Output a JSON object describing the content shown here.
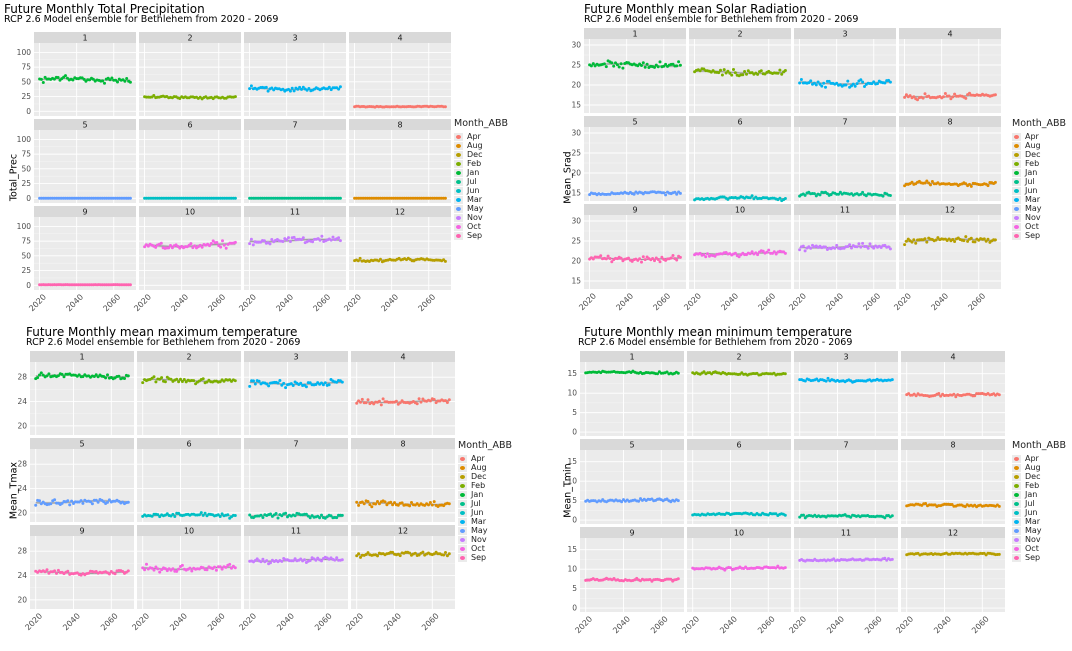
{
  "legend": {
    "title": "Month_ABB",
    "items": [
      {
        "label": "Apr",
        "color": "#F8766D"
      },
      {
        "label": "Aug",
        "color": "#DE8C00"
      },
      {
        "label": "Dec",
        "color": "#B79F00"
      },
      {
        "label": "Feb",
        "color": "#7CAE00"
      },
      {
        "label": "Jan",
        "color": "#00BA38"
      },
      {
        "label": "Jul",
        "color": "#00C08B"
      },
      {
        "label": "Jun",
        "color": "#00BFC4"
      },
      {
        "label": "Mar",
        "color": "#00B4F0"
      },
      {
        "label": "May",
        "color": "#619CFF"
      },
      {
        "label": "Nov",
        "color": "#C77CFF"
      },
      {
        "label": "Oct",
        "color": "#F564E3"
      },
      {
        "label": "Sep",
        "color": "#FF64B0"
      }
    ]
  },
  "x_ticks": [
    "2020",
    "2040",
    "2060"
  ],
  "chart_data": [
    {
      "type": "scatter",
      "title": "Future Monthly Total Precipitation",
      "subtitle": "RCP 2.6 Model ensemble for Bethlehem from 2020 - 2069",
      "ylabel": "Total_Prec",
      "xlabel": "",
      "xlim": [
        2017,
        2072
      ],
      "ylim": [
        -8,
        116
      ],
      "yticks": [
        0,
        25,
        50,
        75,
        100
      ],
      "facets": [
        {
          "month": "1",
          "color": "#00BA38",
          "mean": 54,
          "spread": 6
        },
        {
          "month": "2",
          "color": "#7CAE00",
          "mean": 24,
          "spread": 3
        },
        {
          "month": "3",
          "color": "#00B4F0",
          "mean": 38,
          "spread": 5
        },
        {
          "month": "4",
          "color": "#F8766D",
          "mean": 8,
          "spread": 1
        },
        {
          "month": "5",
          "color": "#619CFF",
          "mean": 0,
          "spread": 0
        },
        {
          "month": "6",
          "color": "#00BFC4",
          "mean": 0,
          "spread": 0
        },
        {
          "month": "7",
          "color": "#00C08B",
          "mean": 0,
          "spread": 0
        },
        {
          "month": "8",
          "color": "#DE8C00",
          "mean": 0,
          "spread": 0
        },
        {
          "month": "9",
          "color": "#FF64B0",
          "mean": 1,
          "spread": 0.3
        },
        {
          "month": "10",
          "color": "#F564E3",
          "mean": 68,
          "spread": 9
        },
        {
          "month": "11",
          "color": "#C77CFF",
          "mean": 76,
          "spread": 8
        },
        {
          "month": "12",
          "color": "#B79F00",
          "mean": 43,
          "spread": 4
        }
      ]
    },
    {
      "type": "scatter",
      "title": "Future Monthly mean Solar Radiation",
      "subtitle": "RCP 2.6 Model ensemble for Bethlehem from 2020 - 2069",
      "ylabel": "Mean_Srad",
      "xlabel": "",
      "xlim": [
        2017,
        2072
      ],
      "ylim": [
        13,
        31.5
      ],
      "yticks": [
        15,
        20,
        25,
        30
      ],
      "facets": [
        {
          "month": "1",
          "color": "#00BA38",
          "mean": 25,
          "spread": 1.1
        },
        {
          "month": "2",
          "color": "#7CAE00",
          "mean": 23.2,
          "spread": 1.1
        },
        {
          "month": "3",
          "color": "#00B4F0",
          "mean": 20.5,
          "spread": 1.1
        },
        {
          "month": "4",
          "color": "#F8766D",
          "mean": 17.2,
          "spread": 0.9
        },
        {
          "month": "5",
          "color": "#619CFF",
          "mean": 15,
          "spread": 0.6
        },
        {
          "month": "6",
          "color": "#00BFC4",
          "mean": 13.7,
          "spread": 0.5
        },
        {
          "month": "7",
          "color": "#00C08B",
          "mean": 14.7,
          "spread": 0.6
        },
        {
          "month": "8",
          "color": "#DE8C00",
          "mean": 17.3,
          "spread": 0.7
        },
        {
          "month": "9",
          "color": "#FF64B0",
          "mean": 20.6,
          "spread": 0.9
        },
        {
          "month": "10",
          "color": "#F564E3",
          "mean": 21.9,
          "spread": 0.8
        },
        {
          "month": "11",
          "color": "#C77CFF",
          "mean": 23.5,
          "spread": 0.9
        },
        {
          "month": "12",
          "color": "#B79F00",
          "mean": 25.2,
          "spread": 1.1
        }
      ]
    },
    {
      "type": "scatter",
      "title": "Future Monthly mean maximum temperature",
      "subtitle": "RCP 2.6 Model ensemble for Bethlehem from 2020 - 2069",
      "ylabel": "Mean_Tmax",
      "xlabel": "",
      "xlim": [
        2017,
        2072
      ],
      "ylim": [
        18.5,
        30.5
      ],
      "yticks": [
        20,
        24,
        28
      ],
      "facets": [
        {
          "month": "1",
          "color": "#00BA38",
          "mean": 28.2,
          "spread": 0.6
        },
        {
          "month": "2",
          "color": "#7CAE00",
          "mean": 27.5,
          "spread": 0.6
        },
        {
          "month": "3",
          "color": "#00B4F0",
          "mean": 27,
          "spread": 0.7
        },
        {
          "month": "4",
          "color": "#F8766D",
          "mean": 24,
          "spread": 0.6
        },
        {
          "month": "5",
          "color": "#619CFF",
          "mean": 21.8,
          "spread": 0.7
        },
        {
          "month": "6",
          "color": "#00BFC4",
          "mean": 19.6,
          "spread": 0.5
        },
        {
          "month": "7",
          "color": "#00C08B",
          "mean": 19.5,
          "spread": 0.5
        },
        {
          "month": "8",
          "color": "#DE8C00",
          "mean": 21.5,
          "spread": 0.6
        },
        {
          "month": "9",
          "color": "#FF64B0",
          "mean": 24.5,
          "spread": 0.6
        },
        {
          "month": "10",
          "color": "#F564E3",
          "mean": 25.2,
          "spread": 0.7
        },
        {
          "month": "11",
          "color": "#C77CFF",
          "mean": 26.5,
          "spread": 0.6
        },
        {
          "month": "12",
          "color": "#B79F00",
          "mean": 27.5,
          "spread": 0.5
        }
      ]
    },
    {
      "type": "scatter",
      "title": "Future Monthly mean minimum temperature",
      "subtitle": "RCP 2.6 Model ensemble for Bethlehem from 2020 - 2069",
      "ylabel": "Mean_Tmin",
      "xlabel": "",
      "xlim": [
        2017,
        2072
      ],
      "ylim": [
        -1,
        18
      ],
      "yticks": [
        0,
        5,
        10,
        15
      ],
      "facets": [
        {
          "month": "1",
          "color": "#00BA38",
          "mean": 15.3,
          "spread": 0.4
        },
        {
          "month": "2",
          "color": "#7CAE00",
          "mean": 15,
          "spread": 0.5
        },
        {
          "month": "3",
          "color": "#00B4F0",
          "mean": 13.3,
          "spread": 0.5
        },
        {
          "month": "4",
          "color": "#F8766D",
          "mean": 9.6,
          "spread": 0.5
        },
        {
          "month": "5",
          "color": "#619CFF",
          "mean": 5,
          "spread": 0.5
        },
        {
          "month": "6",
          "color": "#00BFC4",
          "mean": 1.5,
          "spread": 0.4
        },
        {
          "month": "7",
          "color": "#00C08B",
          "mean": 1,
          "spread": 0.5
        },
        {
          "month": "8",
          "color": "#DE8C00",
          "mean": 3.8,
          "spread": 0.5
        },
        {
          "month": "9",
          "color": "#FF64B0",
          "mean": 7.3,
          "spread": 0.5
        },
        {
          "month": "10",
          "color": "#F564E3",
          "mean": 10.3,
          "spread": 0.5
        },
        {
          "month": "11",
          "color": "#C77CFF",
          "mean": 12.4,
          "spread": 0.4
        },
        {
          "month": "12",
          "color": "#B79F00",
          "mean": 13.9,
          "spread": 0.3
        }
      ]
    }
  ]
}
